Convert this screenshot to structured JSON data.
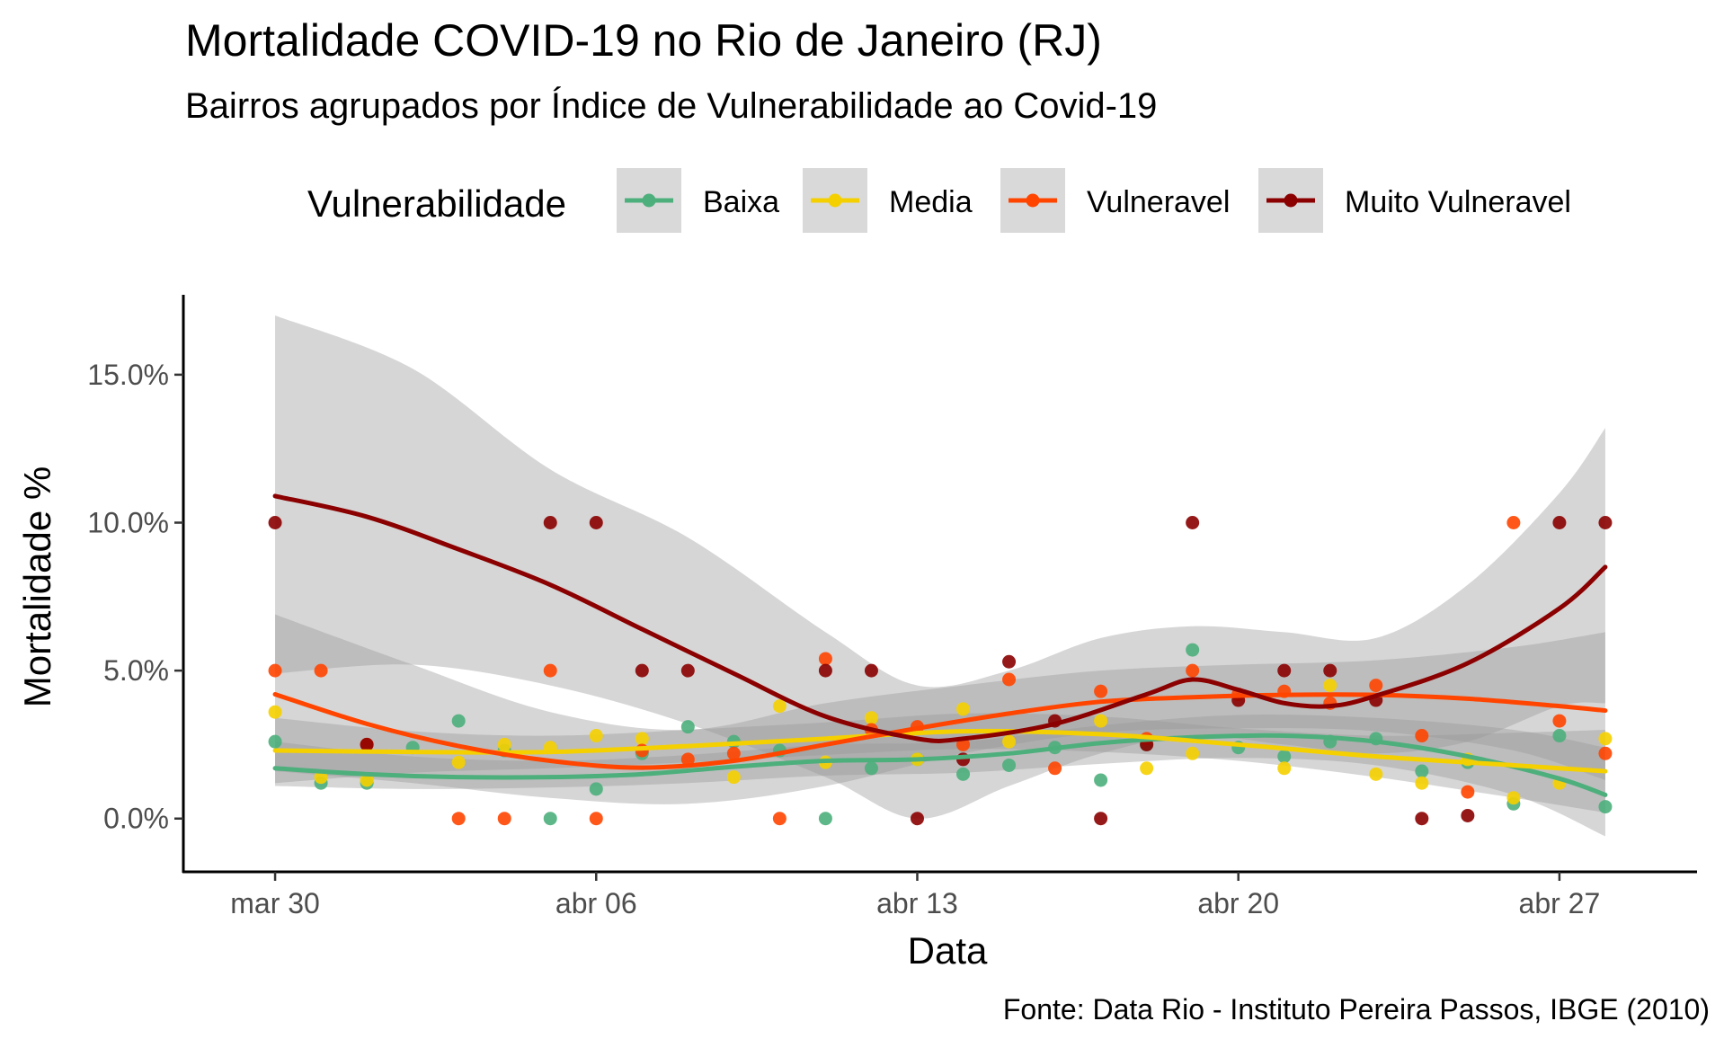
{
  "chart_data": {
    "type": "scatter",
    "title": "Mortalidade COVID-19 no Rio de Janeiro (RJ)",
    "subtitle": "Bairros agrupados por Índice de Vulnerabilidade ao Covid-19",
    "xlabel": "Data",
    "ylabel": "Mortalidade %",
    "caption": "Fonte: Data Rio - Instituto Pereira Passos, IBGE (2010)",
    "legend_title": "Vulnerabilidade",
    "legend_position": "top",
    "grid": false,
    "x_range": [
      "2020-03-28",
      "2020-04-30"
    ],
    "ylim": [
      -1.8,
      17.7
    ],
    "x_ticks": [
      {
        "date": "2020-03-30",
        "label": "mar 30"
      },
      {
        "date": "2020-04-06",
        "label": "abr 06"
      },
      {
        "date": "2020-04-13",
        "label": "abr 13"
      },
      {
        "date": "2020-04-20",
        "label": "abr 20"
      },
      {
        "date": "2020-04-27",
        "label": "abr 27"
      }
    ],
    "y_ticks": [
      {
        "value": 0,
        "label": "0.0%"
      },
      {
        "value": 5,
        "label": "5.0%"
      },
      {
        "value": 10,
        "label": "10.0%"
      },
      {
        "value": 15,
        "label": "15.0%"
      }
    ],
    "series": [
      {
        "name": "Baixa",
        "color": "#4daf7c",
        "points": [
          [
            "2020-03-30",
            2.6
          ],
          [
            "2020-03-31",
            1.2
          ],
          [
            "2020-04-01",
            1.2
          ],
          [
            "2020-04-02",
            2.4
          ],
          [
            "2020-04-03",
            3.3
          ],
          [
            "2020-04-04",
            2.3
          ],
          [
            "2020-04-05",
            0.0
          ],
          [
            "2020-04-06",
            1.0
          ],
          [
            "2020-04-07",
            2.2
          ],
          [
            "2020-04-08",
            3.1
          ],
          [
            "2020-04-09",
            2.6
          ],
          [
            "2020-04-10",
            2.3
          ],
          [
            "2020-04-11",
            0.0
          ],
          [
            "2020-04-12",
            1.7
          ],
          [
            "2020-04-13",
            2.0
          ],
          [
            "2020-04-14",
            1.5
          ],
          [
            "2020-04-15",
            1.8
          ],
          [
            "2020-04-16",
            2.4
          ],
          [
            "2020-04-17",
            1.3
          ],
          [
            "2020-04-18",
            2.5
          ],
          [
            "2020-04-19",
            5.7
          ],
          [
            "2020-04-20",
            2.4
          ],
          [
            "2020-04-21",
            2.1
          ],
          [
            "2020-04-22",
            2.6
          ],
          [
            "2020-04-23",
            2.7
          ],
          [
            "2020-04-24",
            1.6
          ],
          [
            "2020-04-25",
            1.9
          ],
          [
            "2020-04-26",
            0.5
          ],
          [
            "2020-04-27",
            2.8
          ],
          [
            "2020-04-28",
            0.4
          ]
        ],
        "fit": [
          [
            "2020-03-30",
            1.7
          ],
          [
            "2020-04-01",
            1.5
          ],
          [
            "2020-04-03",
            1.4
          ],
          [
            "2020-04-05",
            1.4
          ],
          [
            "2020-04-07",
            1.5
          ],
          [
            "2020-04-09",
            1.75
          ],
          [
            "2020-04-11",
            1.95
          ],
          [
            "2020-04-13",
            2.0
          ],
          [
            "2020-04-15",
            2.2
          ],
          [
            "2020-04-17",
            2.55
          ],
          [
            "2020-04-19",
            2.75
          ],
          [
            "2020-04-21",
            2.8
          ],
          [
            "2020-04-23",
            2.6
          ],
          [
            "2020-04-25",
            2.1
          ],
          [
            "2020-04-27",
            1.35
          ],
          [
            "2020-04-28",
            0.8
          ]
        ],
        "ci_lower": [
          [
            "2020-03-30",
            1.1
          ],
          [
            "2020-04-02",
            1.0
          ],
          [
            "2020-04-05",
            1.05
          ],
          [
            "2020-04-08",
            1.2
          ],
          [
            "2020-04-11",
            1.45
          ],
          [
            "2020-04-14",
            1.55
          ],
          [
            "2020-04-17",
            1.85
          ],
          [
            "2020-04-20",
            2.05
          ],
          [
            "2020-04-23",
            1.8
          ],
          [
            "2020-04-26",
            0.8
          ],
          [
            "2020-04-28",
            -0.6
          ]
        ],
        "ci_upper": [
          [
            "2020-03-30",
            2.6
          ],
          [
            "2020-04-02",
            2.1
          ],
          [
            "2020-04-05",
            1.95
          ],
          [
            "2020-04-08",
            2.15
          ],
          [
            "2020-04-11",
            2.5
          ],
          [
            "2020-04-14",
            2.6
          ],
          [
            "2020-04-17",
            3.15
          ],
          [
            "2020-04-20",
            3.5
          ],
          [
            "2020-04-23",
            3.4
          ],
          [
            "2020-04-26",
            3.0
          ],
          [
            "2020-04-28",
            2.4
          ]
        ]
      },
      {
        "name": "Media",
        "color": "#f5d000",
        "points": [
          [
            "2020-03-30",
            3.6
          ],
          [
            "2020-03-31",
            1.4
          ],
          [
            "2020-04-01",
            1.3
          ],
          [
            "2020-04-03",
            1.9
          ],
          [
            "2020-04-04",
            2.5
          ],
          [
            "2020-04-05",
            2.4
          ],
          [
            "2020-04-06",
            2.8
          ],
          [
            "2020-04-07",
            2.7
          ],
          [
            "2020-04-09",
            1.4
          ],
          [
            "2020-04-10",
            3.8
          ],
          [
            "2020-04-11",
            1.9
          ],
          [
            "2020-04-12",
            3.4
          ],
          [
            "2020-04-13",
            2.0
          ],
          [
            "2020-04-14",
            3.7
          ],
          [
            "2020-04-15",
            2.6
          ],
          [
            "2020-04-17",
            3.3
          ],
          [
            "2020-04-18",
            1.7
          ],
          [
            "2020-04-19",
            2.2
          ],
          [
            "2020-04-21",
            1.7
          ],
          [
            "2020-04-22",
            4.5
          ],
          [
            "2020-04-23",
            1.5
          ],
          [
            "2020-04-24",
            1.2
          ],
          [
            "2020-04-25",
            2.0
          ],
          [
            "2020-04-26",
            0.7
          ],
          [
            "2020-04-27",
            1.2
          ],
          [
            "2020-04-28",
            2.7
          ]
        ],
        "fit": [
          [
            "2020-03-30",
            2.3
          ],
          [
            "2020-04-02",
            2.25
          ],
          [
            "2020-04-05",
            2.25
          ],
          [
            "2020-04-08",
            2.45
          ],
          [
            "2020-04-11",
            2.7
          ],
          [
            "2020-04-14",
            2.95
          ],
          [
            "2020-04-17",
            2.85
          ],
          [
            "2020-04-20",
            2.5
          ],
          [
            "2020-04-23",
            2.1
          ],
          [
            "2020-04-26",
            1.8
          ],
          [
            "2020-04-28",
            1.6
          ]
        ],
        "ci_lower": [
          [
            "2020-03-30",
            1.2
          ],
          [
            "2020-04-02",
            1.55
          ],
          [
            "2020-04-05",
            1.7
          ],
          [
            "2020-04-08",
            1.9
          ],
          [
            "2020-04-11",
            2.15
          ],
          [
            "2020-04-14",
            2.35
          ],
          [
            "2020-04-17",
            2.25
          ],
          [
            "2020-04-20",
            1.95
          ],
          [
            "2020-04-23",
            1.4
          ],
          [
            "2020-04-26",
            0.7
          ],
          [
            "2020-04-28",
            0.2
          ]
        ],
        "ci_upper": [
          [
            "2020-03-30",
            3.4
          ],
          [
            "2020-04-02",
            2.95
          ],
          [
            "2020-04-05",
            2.8
          ],
          [
            "2020-04-08",
            3.0
          ],
          [
            "2020-04-11",
            3.25
          ],
          [
            "2020-04-14",
            3.55
          ],
          [
            "2020-04-17",
            3.45
          ],
          [
            "2020-04-20",
            3.05
          ],
          [
            "2020-04-23",
            2.8
          ],
          [
            "2020-04-26",
            2.9
          ],
          [
            "2020-04-28",
            3.0
          ]
        ]
      },
      {
        "name": "Vulneravel",
        "color": "#ff4500",
        "points": [
          [
            "2020-03-30",
            5.0
          ],
          [
            "2020-03-31",
            5.0
          ],
          [
            "2020-04-01",
            2.5
          ],
          [
            "2020-04-03",
            0.0
          ],
          [
            "2020-04-04",
            0.0
          ],
          [
            "2020-04-05",
            5.0
          ],
          [
            "2020-04-06",
            0.0
          ],
          [
            "2020-04-07",
            2.3
          ],
          [
            "2020-04-08",
            2.0
          ],
          [
            "2020-04-09",
            2.2
          ],
          [
            "2020-04-10",
            0.0
          ],
          [
            "2020-04-11",
            5.4
          ],
          [
            "2020-04-12",
            3.0
          ],
          [
            "2020-04-13",
            3.1
          ],
          [
            "2020-04-14",
            2.5
          ],
          [
            "2020-04-15",
            4.7
          ],
          [
            "2020-04-16",
            1.7
          ],
          [
            "2020-04-17",
            4.3
          ],
          [
            "2020-04-18",
            2.7
          ],
          [
            "2020-04-19",
            5.0
          ],
          [
            "2020-04-20",
            4.2
          ],
          [
            "2020-04-21",
            4.3
          ],
          [
            "2020-04-22",
            3.9
          ],
          [
            "2020-04-23",
            4.5
          ],
          [
            "2020-04-24",
            2.8
          ],
          [
            "2020-04-25",
            0.9
          ],
          [
            "2020-04-26",
            10.0
          ],
          [
            "2020-04-27",
            3.3
          ],
          [
            "2020-04-28",
            2.2
          ]
        ],
        "fit": [
          [
            "2020-03-30",
            4.2
          ],
          [
            "2020-04-01",
            3.2
          ],
          [
            "2020-04-03",
            2.45
          ],
          [
            "2020-04-05",
            1.95
          ],
          [
            "2020-04-07",
            1.72
          ],
          [
            "2020-04-09",
            1.95
          ],
          [
            "2020-04-11",
            2.5
          ],
          [
            "2020-04-13",
            3.05
          ],
          [
            "2020-04-15",
            3.55
          ],
          [
            "2020-04-17",
            3.95
          ],
          [
            "2020-04-19",
            4.1
          ],
          [
            "2020-04-21",
            4.18
          ],
          [
            "2020-04-23",
            4.18
          ],
          [
            "2020-04-25",
            4.05
          ],
          [
            "2020-04-27",
            3.8
          ],
          [
            "2020-04-28",
            3.65
          ]
        ],
        "ci_lower": [
          [
            "2020-03-30",
            1.6
          ],
          [
            "2020-04-02",
            1.2
          ],
          [
            "2020-04-05",
            0.7
          ],
          [
            "2020-04-08",
            0.5
          ],
          [
            "2020-04-11",
            1.1
          ],
          [
            "2020-04-14",
            2.2
          ],
          [
            "2020-04-17",
            2.9
          ],
          [
            "2020-04-20",
            3.05
          ],
          [
            "2020-04-23",
            2.95
          ],
          [
            "2020-04-26",
            2.3
          ],
          [
            "2020-04-28",
            1.3
          ]
        ],
        "ci_upper": [
          [
            "2020-03-30",
            6.9
          ],
          [
            "2020-04-02",
            5.2
          ],
          [
            "2020-04-05",
            3.6
          ],
          [
            "2020-04-08",
            3.0
          ],
          [
            "2020-04-11",
            3.9
          ],
          [
            "2020-04-14",
            4.5
          ],
          [
            "2020-04-17",
            5.0
          ],
          [
            "2020-04-20",
            5.2
          ],
          [
            "2020-04-23",
            5.35
          ],
          [
            "2020-04-26",
            5.8
          ],
          [
            "2020-04-28",
            6.3
          ]
        ]
      },
      {
        "name": "Muito Vulneravel",
        "color": "#8b0000",
        "points": [
          [
            "2020-03-30",
            10.0
          ],
          [
            "2020-04-01",
            2.5
          ],
          [
            "2020-04-05",
            10.0
          ],
          [
            "2020-04-06",
            10.0
          ],
          [
            "2020-04-07",
            5.0
          ],
          [
            "2020-04-08",
            5.0
          ],
          [
            "2020-04-11",
            5.0
          ],
          [
            "2020-04-12",
            5.0
          ],
          [
            "2020-04-13",
            0.0
          ],
          [
            "2020-04-14",
            2.0
          ],
          [
            "2020-04-15",
            5.3
          ],
          [
            "2020-04-16",
            3.3
          ],
          [
            "2020-04-17",
            0.0
          ],
          [
            "2020-04-18",
            2.5
          ],
          [
            "2020-04-19",
            10.0
          ],
          [
            "2020-04-20",
            4.0
          ],
          [
            "2020-04-21",
            5.0
          ],
          [
            "2020-04-22",
            5.0
          ],
          [
            "2020-04-23",
            4.0
          ],
          [
            "2020-04-24",
            0.0
          ],
          [
            "2020-04-25",
            0.1
          ],
          [
            "2020-04-27",
            10.0
          ],
          [
            "2020-04-28",
            10.0
          ]
        ],
        "fit": [
          [
            "2020-03-30",
            10.9
          ],
          [
            "2020-04-01",
            10.2
          ],
          [
            "2020-04-03",
            9.1
          ],
          [
            "2020-04-05",
            7.9
          ],
          [
            "2020-04-07",
            6.4
          ],
          [
            "2020-04-09",
            4.9
          ],
          [
            "2020-04-11",
            3.45
          ],
          [
            "2020-04-13",
            2.7
          ],
          [
            "2020-04-14",
            2.7
          ],
          [
            "2020-04-16",
            3.2
          ],
          [
            "2020-04-18",
            4.2
          ],
          [
            "2020-04-19",
            4.7
          ],
          [
            "2020-04-20",
            4.35
          ],
          [
            "2020-04-21",
            3.9
          ],
          [
            "2020-04-22",
            3.8
          ],
          [
            "2020-04-23",
            4.15
          ],
          [
            "2020-04-25",
            5.25
          ],
          [
            "2020-04-27",
            7.1
          ],
          [
            "2020-04-28",
            8.5
          ]
        ],
        "ci_lower": [
          [
            "2020-03-30",
            4.9
          ],
          [
            "2020-04-02",
            5.2
          ],
          [
            "2020-04-05",
            4.5
          ],
          [
            "2020-04-08",
            3.2
          ],
          [
            "2020-04-11",
            1.4
          ],
          [
            "2020-04-13",
            0.0
          ],
          [
            "2020-04-15",
            1.1
          ],
          [
            "2020-04-17",
            2.2
          ],
          [
            "2020-04-19",
            2.8
          ],
          [
            "2020-04-21",
            2.5
          ],
          [
            "2020-04-23",
            2.2
          ],
          [
            "2020-04-25",
            2.6
          ],
          [
            "2020-04-27",
            3.8
          ],
          [
            "2020-04-28",
            3.9
          ]
        ],
        "ci_upper": [
          [
            "2020-03-30",
            17.0
          ],
          [
            "2020-04-02",
            15.2
          ],
          [
            "2020-04-05",
            11.8
          ],
          [
            "2020-04-08",
            9.5
          ],
          [
            "2020-04-11",
            6.3
          ],
          [
            "2020-04-13",
            4.5
          ],
          [
            "2020-04-15",
            5.0
          ],
          [
            "2020-04-17",
            6.1
          ],
          [
            "2020-04-19",
            6.5
          ],
          [
            "2020-04-21",
            6.3
          ],
          [
            "2020-04-23",
            6.1
          ],
          [
            "2020-04-25",
            7.9
          ],
          [
            "2020-04-27",
            11.0
          ],
          [
            "2020-04-28",
            13.2
          ]
        ]
      }
    ]
  }
}
